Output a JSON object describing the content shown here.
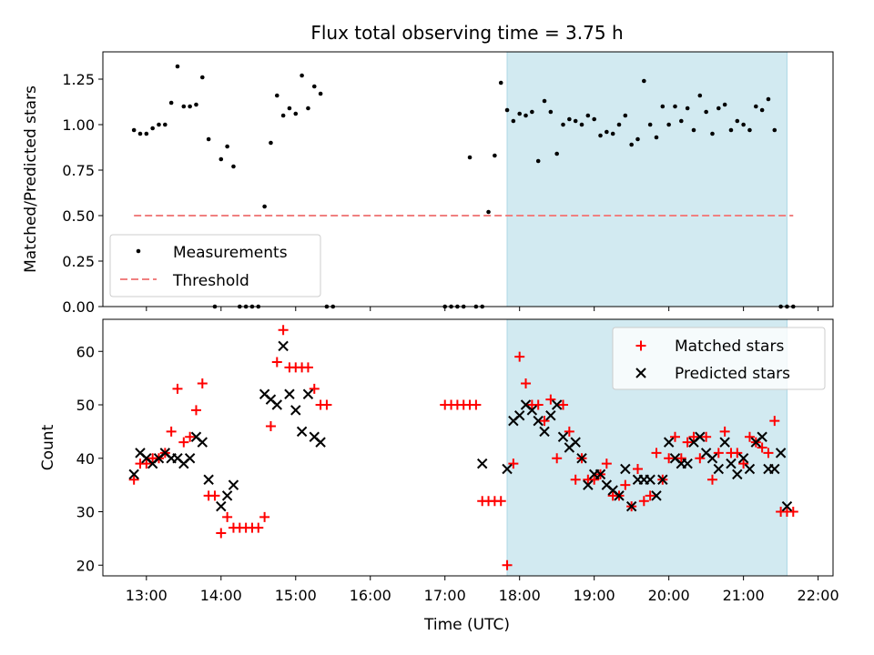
{
  "title": "Flux total observing time = 3.75 h",
  "colors": {
    "measurement": "#000000",
    "threshold": "#f08080",
    "matched": "#ff0000",
    "predicted": "#000000",
    "shade": "#add8e6"
  },
  "chart_data": [
    {
      "type": "scatter",
      "panel": "top",
      "ylabel": "Matched/Predicted stars",
      "xlim": [
        "12:25",
        "22:12"
      ],
      "ylim": [
        0,
        1.4
      ],
      "yticks": [
        0,
        0.25,
        0.5,
        0.75,
        1.0,
        1.25
      ],
      "ytick_labels": [
        "0.00",
        "0.25",
        "0.50",
        "0.75",
        "1.00",
        "1.25"
      ],
      "shaded_span": [
        "17:50",
        "21:35"
      ],
      "legend": {
        "position": "lower-left",
        "entries": [
          "Measurements",
          "Threshold"
        ]
      },
      "series": [
        {
          "name": "Measurements",
          "marker": "dot",
          "x": [
            "12:50",
            "12:55",
            "13:00",
            "13:05",
            "13:10",
            "13:15",
            "13:20",
            "13:25",
            "13:30",
            "13:35",
            "13:40",
            "13:45",
            "13:50",
            "13:55",
            "14:00",
            "14:05",
            "14:10",
            "14:15",
            "14:20",
            "14:25",
            "14:30",
            "14:35",
            "14:40",
            "14:45",
            "14:50",
            "14:55",
            "15:00",
            "15:05",
            "15:10",
            "15:15",
            "15:20",
            "15:25",
            "15:30",
            "17:00",
            "17:05",
            "17:10",
            "17:15",
            "17:20",
            "17:25",
            "17:30",
            "17:35",
            "17:40",
            "17:45",
            "17:50",
            "17:55",
            "18:00",
            "18:05",
            "18:10",
            "18:15",
            "18:20",
            "18:25",
            "18:30",
            "18:35",
            "18:40",
            "18:45",
            "18:50",
            "18:55",
            "19:00",
            "19:05",
            "19:10",
            "19:15",
            "19:20",
            "19:25",
            "19:30",
            "19:35",
            "19:40",
            "19:45",
            "19:50",
            "19:55",
            "20:00",
            "20:05",
            "20:10",
            "20:15",
            "20:20",
            "20:25",
            "20:30",
            "20:35",
            "20:40",
            "20:45",
            "20:50",
            "20:55",
            "21:00",
            "21:05",
            "21:10",
            "21:15",
            "21:20",
            "21:25",
            "21:30",
            "21:35",
            "21:40"
          ],
          "y": [
            0.97,
            0.95,
            0.95,
            0.98,
            1.0,
            1.0,
            1.12,
            1.32,
            1.1,
            1.1,
            1.11,
            1.26,
            0.92,
            0.0,
            0.81,
            0.88,
            0.77,
            0.0,
            0.0,
            0.0,
            0.0,
            0.55,
            0.9,
            1.16,
            1.05,
            1.09,
            1.06,
            1.27,
            1.09,
            1.21,
            1.17,
            0.0,
            0.0,
            0.0,
            0.0,
            0.0,
            0.0,
            0.82,
            0.0,
            0.0,
            0.52,
            0.83,
            1.23,
            1.08,
            1.02,
            1.06,
            1.05,
            1.07,
            0.8,
            1.13,
            1.07,
            0.84,
            1.0,
            1.03,
            1.02,
            1.0,
            1.05,
            1.03,
            0.94,
            0.96,
            0.95,
            1.0,
            1.05,
            0.89,
            0.92,
            1.24,
            1.0,
            0.93,
            1.1,
            1.0,
            1.1,
            1.02,
            1.09,
            0.97,
            1.16,
            1.07,
            0.95,
            1.09,
            1.11,
            0.97,
            1.02,
            1.0,
            0.97,
            1.1,
            1.08,
            1.14,
            0.97,
            0.0,
            0.0,
            0.0
          ]
        },
        {
          "name": "Threshold",
          "style": "dashed",
          "x": [
            "12:50",
            "21:40"
          ],
          "y": [
            0.5,
            0.5
          ]
        }
      ]
    },
    {
      "type": "scatter",
      "panel": "bottom",
      "ylabel": "Count",
      "xlabel": "Time (UTC)",
      "xlim": [
        "12:25",
        "22:12"
      ],
      "ylim": [
        18,
        66
      ],
      "xticks": [
        "13:00",
        "14:00",
        "15:00",
        "16:00",
        "17:00",
        "18:00",
        "19:00",
        "20:00",
        "21:00",
        "22:00"
      ],
      "yticks": [
        20,
        30,
        40,
        50,
        60
      ],
      "ytick_labels": [
        "20",
        "30",
        "40",
        "50",
        "60"
      ],
      "shaded_span": [
        "17:50",
        "21:35"
      ],
      "legend": {
        "position": "upper-right",
        "entries": [
          "Matched stars",
          "Predicted stars"
        ]
      },
      "series": [
        {
          "name": "Matched stars",
          "marker": "plus",
          "x": [
            "12:50",
            "12:55",
            "13:00",
            "13:05",
            "13:10",
            "13:15",
            "13:20",
            "13:25",
            "13:30",
            "13:35",
            "13:40",
            "13:45",
            "13:50",
            "13:55",
            "14:00",
            "14:05",
            "14:10",
            "14:15",
            "14:20",
            "14:25",
            "14:30",
            "14:35",
            "14:40",
            "14:45",
            "14:50",
            "14:55",
            "15:00",
            "15:05",
            "15:10",
            "15:15",
            "15:20",
            "15:25",
            "17:00",
            "17:05",
            "17:10",
            "17:15",
            "17:20",
            "17:25",
            "17:30",
            "17:35",
            "17:40",
            "17:45",
            "17:50",
            "17:55",
            "18:00",
            "18:05",
            "18:10",
            "18:15",
            "18:20",
            "18:25",
            "18:30",
            "18:35",
            "18:40",
            "18:45",
            "18:50",
            "18:55",
            "19:00",
            "19:05",
            "19:10",
            "19:15",
            "19:20",
            "19:25",
            "19:30",
            "19:35",
            "19:40",
            "19:45",
            "19:50",
            "19:55",
            "20:00",
            "20:05",
            "20:10",
            "20:15",
            "20:20",
            "20:25",
            "20:30",
            "20:35",
            "20:40",
            "20:45",
            "20:50",
            "20:55",
            "21:00",
            "21:05",
            "21:10",
            "21:15",
            "21:20",
            "21:25",
            "21:30",
            "21:35",
            "21:40"
          ],
          "y": [
            36,
            39,
            39,
            40,
            40,
            41,
            45,
            53,
            43,
            44,
            49,
            54,
            33,
            33,
            26,
            29,
            27,
            27,
            27,
            27,
            27,
            29,
            46,
            58,
            64,
            57,
            57,
            57,
            57,
            53,
            50,
            50,
            50,
            50,
            50,
            50,
            50,
            50,
            32,
            32,
            32,
            32,
            20,
            39,
            59,
            54,
            50,
            50,
            47,
            51,
            40,
            50,
            45,
            36,
            40,
            36,
            36,
            37,
            39,
            33,
            33,
            35,
            31,
            38,
            32,
            33,
            41,
            36,
            40,
            44,
            40,
            43,
            44,
            40,
            44,
            36,
            41,
            45,
            41,
            41,
            39,
            44,
            43,
            42,
            41,
            47,
            30,
            30,
            30
          ]
        },
        {
          "name": "Predicted stars",
          "marker": "x",
          "x": [
            "12:50",
            "12:55",
            "13:00",
            "13:05",
            "13:10",
            "13:15",
            "13:20",
            "13:25",
            "13:30",
            "13:35",
            "13:40",
            "13:45",
            "13:50",
            "14:00",
            "14:05",
            "14:10",
            "14:35",
            "14:40",
            "14:45",
            "14:50",
            "14:55",
            "15:00",
            "15:05",
            "15:10",
            "15:15",
            "15:20",
            "17:30",
            "17:50",
            "17:55",
            "18:00",
            "18:05",
            "18:10",
            "18:15",
            "18:20",
            "18:25",
            "18:30",
            "18:35",
            "18:40",
            "18:45",
            "18:50",
            "18:55",
            "19:00",
            "19:05",
            "19:10",
            "19:15",
            "19:20",
            "19:25",
            "19:30",
            "19:35",
            "19:40",
            "19:45",
            "19:50",
            "19:55",
            "20:00",
            "20:05",
            "20:10",
            "20:15",
            "20:20",
            "20:25",
            "20:30",
            "20:35",
            "20:40",
            "20:45",
            "20:50",
            "20:55",
            "21:00",
            "21:05",
            "21:10",
            "21:15",
            "21:20",
            "21:25",
            "21:30",
            "21:35"
          ],
          "y": [
            37,
            41,
            40,
            39,
            40,
            41,
            40,
            40,
            39,
            40,
            44,
            43,
            36,
            31,
            33,
            35,
            52,
            51,
            50,
            61,
            52,
            49,
            45,
            52,
            44,
            43,
            39,
            38,
            47,
            48,
            50,
            49,
            47,
            45,
            48,
            50,
            44,
            42,
            43,
            40,
            35,
            37,
            37,
            35,
            34,
            33,
            38,
            31,
            36,
            36,
            36,
            33,
            36,
            43,
            40,
            39,
            39,
            43,
            44,
            41,
            40,
            38,
            43,
            39,
            37,
            40,
            38,
            43,
            44,
            38,
            38,
            41,
            31
          ]
        }
      ]
    }
  ]
}
